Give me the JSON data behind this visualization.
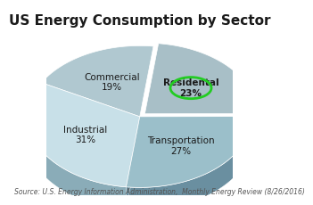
{
  "title": "US Energy Consumption by Sector",
  "slices": [
    {
      "label": "Residental\n23%",
      "value": 23,
      "color_top": "#a8bfc7",
      "color_side": "#6a8a96",
      "explode": 0.06,
      "bold": true
    },
    {
      "label": "Transportation\n27%",
      "value": 27,
      "color_top": "#9bbfca",
      "color_side": "#6a8fa0",
      "explode": 0.0,
      "bold": false
    },
    {
      "label": "Industrial\n31%",
      "value": 31,
      "color_top": "#c8e0e8",
      "color_side": "#8aacb8",
      "explode": 0.0,
      "bold": false
    },
    {
      "label": "Commercial\n19%",
      "value": 19,
      "color_top": "#b0c8d0",
      "color_side": "#708fa0",
      "explode": 0.0,
      "bold": false
    }
  ],
  "source_text": "Source: U.S. Energy Information Administration,  Monthly Energy Review (8/26/2016)",
  "highlight_circle_color": "#22cc22",
  "highlight_slice_index": 0,
  "background_color": "#ffffff",
  "title_fontsize": 11,
  "label_fontsize": 7.5,
  "source_fontsize": 5.5,
  "startangle": 83
}
